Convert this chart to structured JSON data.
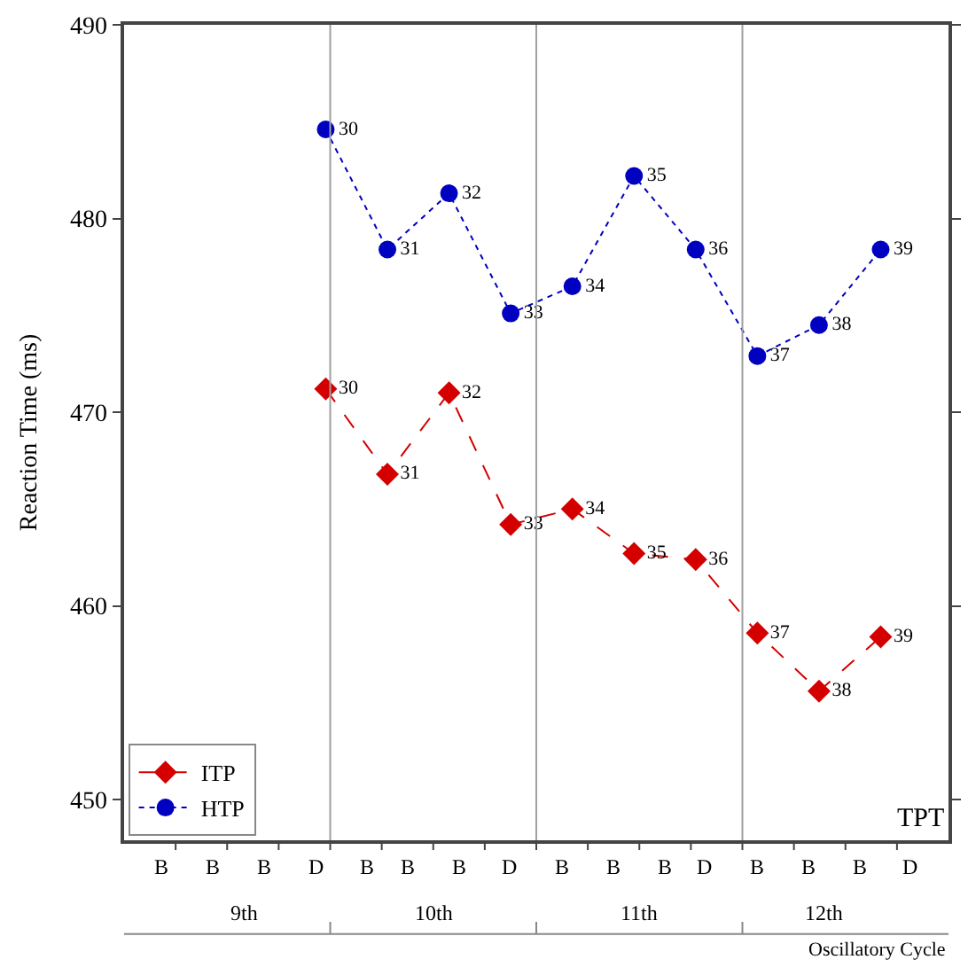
{
  "chart_data": {
    "type": "line",
    "ylabel": "Reaction Time (ms)",
    "categories": [
      "30",
      "31",
      "32",
      "33",
      "34",
      "35",
      "36",
      "37",
      "38",
      "39"
    ],
    "series": [
      {
        "name": "ITP",
        "color": "#d40000",
        "marker": "diamond",
        "line_style": "dashed",
        "values": [
          471.2,
          466.8,
          471.0,
          464.2,
          465.0,
          462.7,
          462.4,
          458.6,
          455.6,
          458.4
        ]
      },
      {
        "name": "HTP",
        "color": "#0000c0",
        "marker": "circle",
        "line_style": "dotted",
        "values": [
          484.6,
          478.4,
          481.3,
          475.1,
          476.5,
          482.2,
          478.4,
          472.9,
          474.5,
          478.4
        ]
      }
    ],
    "ylim": [
      447.9,
      490
    ],
    "yticks": [
      450,
      460,
      470,
      480,
      490
    ],
    "tick_labels": "y",
    "annotations": [
      "TPT",
      "Oscillatory Cycle",
      "B",
      "B",
      "B",
      "D",
      "B",
      "B",
      "B",
      "D",
      "B",
      "B",
      "B",
      "D",
      "B",
      "B",
      "B",
      "D",
      "9th",
      "10th",
      "11th",
      "12th"
    ],
    "legend": "bottom left"
  }
}
